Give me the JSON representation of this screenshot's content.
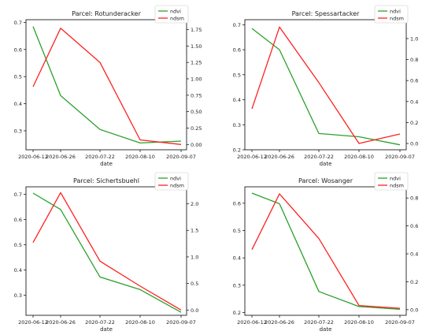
{
  "chart_data": [
    {
      "type": "line",
      "title": "Parcel: Rotunderacker",
      "xlabel": "date",
      "x": [
        "2020-06-12",
        "2020-06-26",
        "2020-07-22",
        "2020-08-10",
        "2020-09-07"
      ],
      "x_ticks": [
        "2020-06-12",
        "2020-06-26",
        "2020-07-22",
        "2020-08-10",
        "2020-09-07"
      ],
      "y_left": {
        "range": [
          0.23,
          0.71
        ],
        "ticks": [
          "0.3",
          "0.4",
          "0.5",
          "0.6",
          "0.7"
        ],
        "tick_values": [
          0.3,
          0.4,
          0.5,
          0.6,
          0.7
        ]
      },
      "y_right": {
        "range": [
          -0.08,
          1.9
        ],
        "ticks": [
          "0.00",
          "0.25",
          "0.50",
          "0.75",
          "1.00",
          "1.25",
          "1.50",
          "1.75"
        ],
        "tick_values": [
          0,
          0.25,
          0.5,
          0.75,
          1.0,
          1.25,
          1.5,
          1.75
        ]
      },
      "series": [
        {
          "name": "ndvi",
          "axis": "left",
          "color": "#2ca02c",
          "values": [
            0.685,
            0.43,
            0.305,
            0.255,
            0.262
          ]
        },
        {
          "name": "ndsm",
          "axis": "right",
          "color": "#ff2020",
          "values": [
            0.88,
            1.77,
            1.25,
            0.07,
            0.0
          ]
        }
      ],
      "legend": "top-right",
      "grid": false
    },
    {
      "type": "line",
      "title": "Parcel: Spessartacker",
      "xlabel": "date",
      "x": [
        "2020-06-12",
        "2020-06-26",
        "2020-07-22",
        "2020-08-10",
        "2020-09-07"
      ],
      "x_ticks": [
        "2020-06-12",
        "2020-06-26",
        "2020-07-22",
        "2020-08-10",
        "2020-09-07"
      ],
      "y_left": {
        "range": [
          0.2,
          0.72
        ],
        "ticks": [
          "0.2",
          "0.3",
          "0.4",
          "0.5",
          "0.6",
          "0.7"
        ],
        "tick_values": [
          0.2,
          0.3,
          0.4,
          0.5,
          0.6,
          0.7
        ]
      },
      "y_right": {
        "range": [
          -0.06,
          1.18
        ],
        "ticks": [
          "0.0",
          "0.2",
          "0.4",
          "0.6",
          "0.8",
          "1.0"
        ],
        "tick_values": [
          0,
          0.2,
          0.4,
          0.6,
          0.8,
          1.0
        ]
      },
      "series": [
        {
          "name": "ndvi",
          "axis": "left",
          "color": "#2ca02c",
          "values": [
            0.685,
            0.6,
            0.265,
            0.252,
            0.22
          ]
        },
        {
          "name": "ndsm",
          "axis": "right",
          "color": "#ff2020",
          "values": [
            0.33,
            1.11,
            0.58,
            0.0,
            0.09
          ]
        }
      ],
      "legend": "top-right",
      "grid": false
    },
    {
      "type": "line",
      "title": "Parcel: Sichertsbuehl",
      "xlabel": "date",
      "x": [
        "2020-06-12",
        "2020-06-26",
        "2020-07-22",
        "2020-08-10",
        "2020-09-07"
      ],
      "x_ticks": [
        "2020-06-12",
        "2020-06-26",
        "2020-07-22",
        "2020-08-10",
        "2020-09-07"
      ],
      "y_left": {
        "range": [
          0.22,
          0.73
        ],
        "ticks": [
          "0.3",
          "0.4",
          "0.5",
          "0.6",
          "0.7"
        ],
        "tick_values": [
          0.3,
          0.4,
          0.5,
          0.6,
          0.7
        ]
      },
      "y_right": {
        "range": [
          -0.1,
          2.32
        ],
        "ticks": [
          "0.0",
          "0.5",
          "1.0",
          "1.5",
          "2.0"
        ],
        "tick_values": [
          0,
          0.5,
          1.0,
          1.5,
          2.0
        ]
      },
      "series": [
        {
          "name": "ndvi",
          "axis": "left",
          "color": "#2ca02c",
          "values": [
            0.705,
            0.64,
            0.372,
            0.322,
            0.232
          ]
        },
        {
          "name": "ndsm",
          "axis": "right",
          "color": "#ff2020",
          "values": [
            1.27,
            2.21,
            0.92,
            0.45,
            0.0
          ]
        }
      ],
      "legend": "top-right",
      "grid": false
    },
    {
      "type": "line",
      "title": "Parcel: Wosanger",
      "xlabel": "date",
      "x": [
        "2020-06-12",
        "2020-06-26",
        "2020-07-22",
        "2020-08-10",
        "2020-09-07"
      ],
      "x_ticks": [
        "2020-06-12",
        "2020-06-26",
        "2020-07-22",
        "2020-08-10",
        "2020-09-07"
      ],
      "y_left": {
        "range": [
          0.19,
          0.66
        ],
        "ticks": [
          "0.2",
          "0.3",
          "0.4",
          "0.5",
          "0.6"
        ],
        "tick_values": [
          0.2,
          0.3,
          0.4,
          0.5,
          0.6
        ]
      },
      "y_right": {
        "range": [
          -0.04,
          0.88
        ],
        "ticks": [
          "0.0",
          "0.2",
          "0.4",
          "0.6",
          "0.8"
        ],
        "tick_values": [
          0,
          0.2,
          0.4,
          0.6,
          0.8
        ]
      },
      "series": [
        {
          "name": "ndvi",
          "axis": "left",
          "color": "#2ca02c",
          "values": [
            0.637,
            0.598,
            0.277,
            0.222,
            0.212
          ]
        },
        {
          "name": "ndsm",
          "axis": "right",
          "color": "#ff2020",
          "values": [
            0.43,
            0.83,
            0.51,
            0.03,
            0.01
          ]
        }
      ],
      "legend": "top-right",
      "grid": false
    }
  ]
}
